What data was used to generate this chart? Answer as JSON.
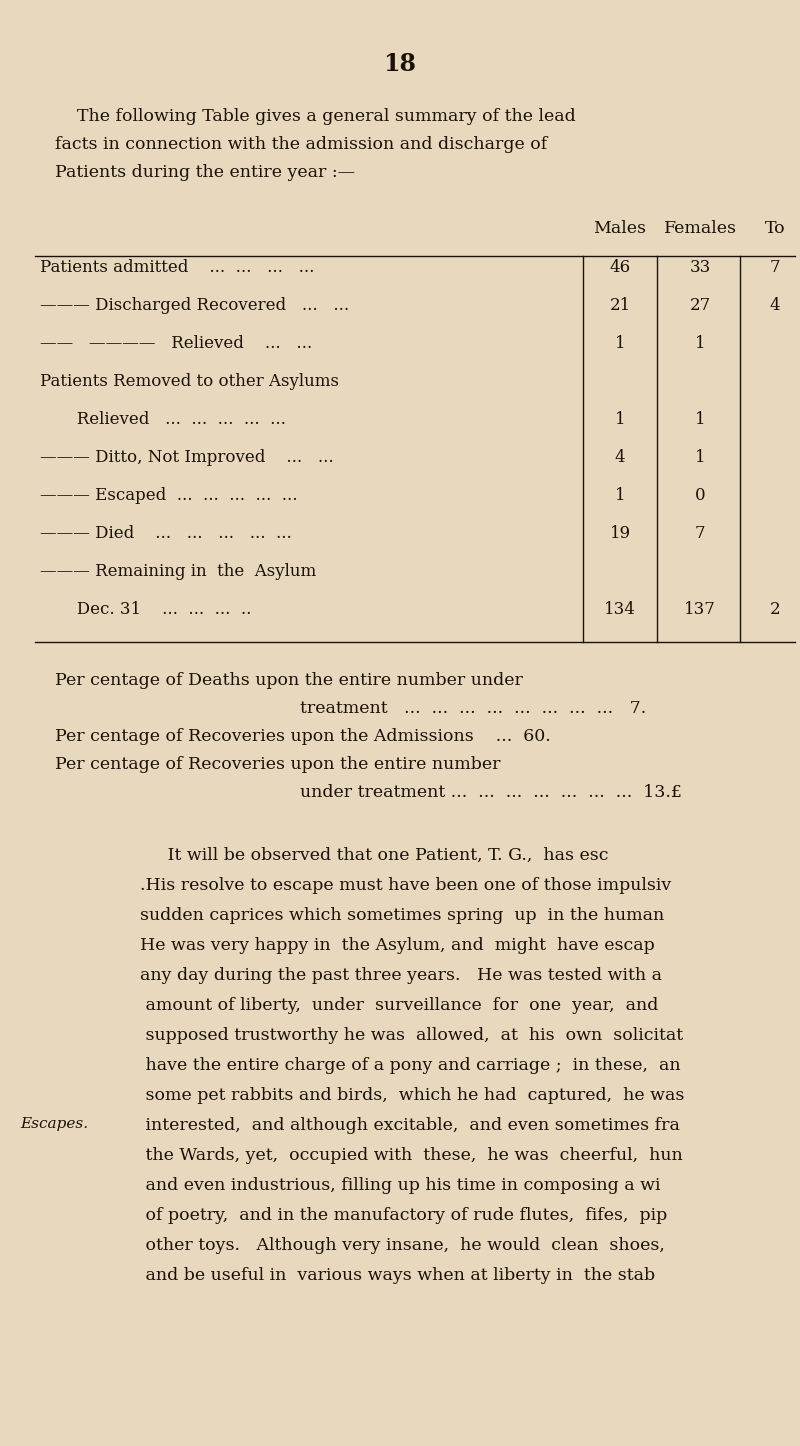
{
  "bg_color": "#e8d9be",
  "text_color": "#1a1208",
  "page_number": "18",
  "intro_lines": [
    "    The following Table gives a general summary of the lead",
    "facts in connection with the admission and discharge of",
    "Patients during the entire year :—"
  ],
  "header_males": "Males",
  "header_females": "Females",
  "header_total": "To",
  "table_rows": [
    {
      "label": "Patients admitted    ...  ...   ...   ...",
      "indent": 0,
      "males": "46",
      "females": "33",
      "total": "7"
    },
    {
      "label": "——— Discharged Recovered   ...   ...",
      "indent": 0,
      "males": "21",
      "females": "27",
      "total": "4"
    },
    {
      "label": "——   ————   Relieved    ...   ...",
      "indent": 0,
      "males": "1",
      "females": "1",
      "total": ""
    },
    {
      "label": "Patients Removed to other Asylums",
      "indent": 0,
      "males": "",
      "females": "",
      "total": ""
    },
    {
      "label": "       Relieved   ...  ...  ...  ...  ...",
      "indent": 1,
      "males": "1",
      "females": "1",
      "total": ""
    },
    {
      "label": "——— Ditto, Not Improved    ...   ...",
      "indent": 0,
      "males": "4",
      "females": "1",
      "total": ""
    },
    {
      "label": "——— Escaped  ...  ...  ...  ...  ...",
      "indent": 0,
      "males": "1",
      "females": "0",
      "total": ""
    },
    {
      "label": "——— Died    ...   ...   ...   ...  ...",
      "indent": 0,
      "males": "19",
      "females": "7",
      "total": ""
    },
    {
      "label": "——— Remaining in  the  Asylum",
      "indent": 0,
      "males": "",
      "females": "",
      "total": ""
    },
    {
      "label": "       Dec. 31    ...  ...  ...  ..",
      "indent": 1,
      "males": "134",
      "females": "137",
      "total": "2"
    }
  ],
  "stat_lines": [
    [
      "left",
      "Per centage of Deaths upon the entire number under"
    ],
    [
      "center",
      "treatment   ...  ...  ...  ...  ...  ...  ...  ...   7."
    ],
    [
      "left",
      "Per centage of Recoveries upon the Admissions    ...  60."
    ],
    [
      "left",
      "Per centage of Recoveries upon the entire number"
    ],
    [
      "center",
      "under treatment ...  ...  ...  ...  ...  ...  ...  13.£"
    ]
  ],
  "body_lines": [
    "     It will be observed that one Patient, T. G.,  has esc",
    ".His resolve to escape must have been one of those impulsiv",
    "sudden caprices which sometimes spring  up  in the human",
    "He was very happy in  the Asylum, and  might  have escap",
    "any day during the past three years.   He was tested with a",
    " amount of liberty,  under  surveillance  for  one  year,  and",
    " supposed trustworthy he was  allowed,  at  his  own  solicitat",
    " have the entire charge of a pony and carriage ;  in these,  an",
    " some pet rabbits and birds,  which he had  captured,  he was",
    " interested,  and although excitable,  and even sometimes fra",
    " the Wards, yet,  occupied with  these,  he was  cheerful,  hun",
    " and even industrious, filling up his time in composing a wi",
    " of poetry,  and in the manufactory of rude flutes,  fifes,  pip",
    " other toys.   Although very insane,  he would  clean  shoes,",
    " and be useful in  various ways when at liberty in  the stab"
  ],
  "escapes_label": "Escapes.",
  "escapes_line_index": 9,
  "fig_w": 8.0,
  "fig_h": 14.46,
  "dpi": 100
}
